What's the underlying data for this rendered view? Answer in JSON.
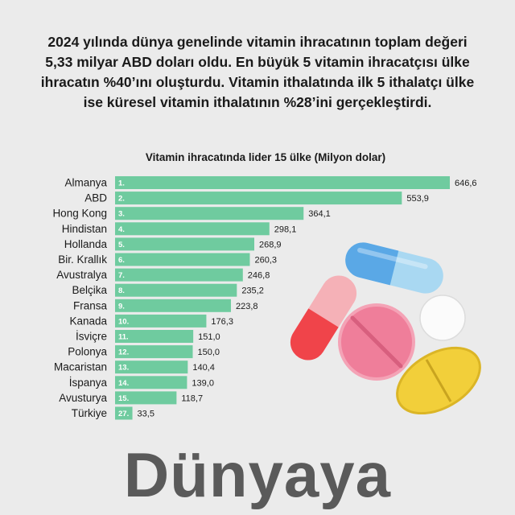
{
  "headline": "2024 yılında dünya genelinde vitamin ihracatının toplam değeri 5,33 milyar ABD doları oldu. En büyük 5 vitamin ihracatçısı ülke ihracatın %40’ını oluşturdu. Vitamin ithalatında ilk 5 ithalatçı ülke ise küresel vitamin ithalatının %28’ini gerçekleştirdi.",
  "brand": "Dünyaya",
  "chart_data": {
    "type": "bar",
    "orientation": "horizontal",
    "title": "Vitamin ihracatında lider 15 ülke (Milyon dolar)",
    "categories": [
      "Almanya",
      "ABD",
      "Hong Kong",
      "Hindistan",
      "Hollanda",
      "Bir. Krallık",
      "Avustralya",
      "Belçika",
      "Fransa",
      "Kanada",
      "İsviçre",
      "Polonya",
      "Macaristan",
      "İspanya",
      "Avusturya",
      "Türkiye"
    ],
    "ranks": [
      "1.",
      "2.",
      "3.",
      "4.",
      "5.",
      "6.",
      "7.",
      "8.",
      "9.",
      "10.",
      "11.",
      "12.",
      "13.",
      "14.",
      "15.",
      "27."
    ],
    "values": [
      646.6,
      553.9,
      364.1,
      298.1,
      268.9,
      260.3,
      246.8,
      235.2,
      223.8,
      176.3,
      151.0,
      150.0,
      140.4,
      139.0,
      118.7,
      33.5
    ],
    "value_labels": [
      "646,6",
      "553,9",
      "364,1",
      "298,1",
      "268,9",
      "260,3",
      "246,8",
      "235,2",
      "223,8",
      "176,3",
      "151,0",
      "150,0",
      "140,4",
      "139,0",
      "118,7",
      "33,5"
    ],
    "xlim": [
      0,
      646.6
    ],
    "bar_color": "#6fcb9f",
    "grid": false,
    "legend": "none"
  },
  "decoration_icons": [
    "capsule-blue-icon",
    "capsule-red-icon",
    "pill-pink-icon",
    "pill-white-icon",
    "pill-yellow-icon"
  ]
}
